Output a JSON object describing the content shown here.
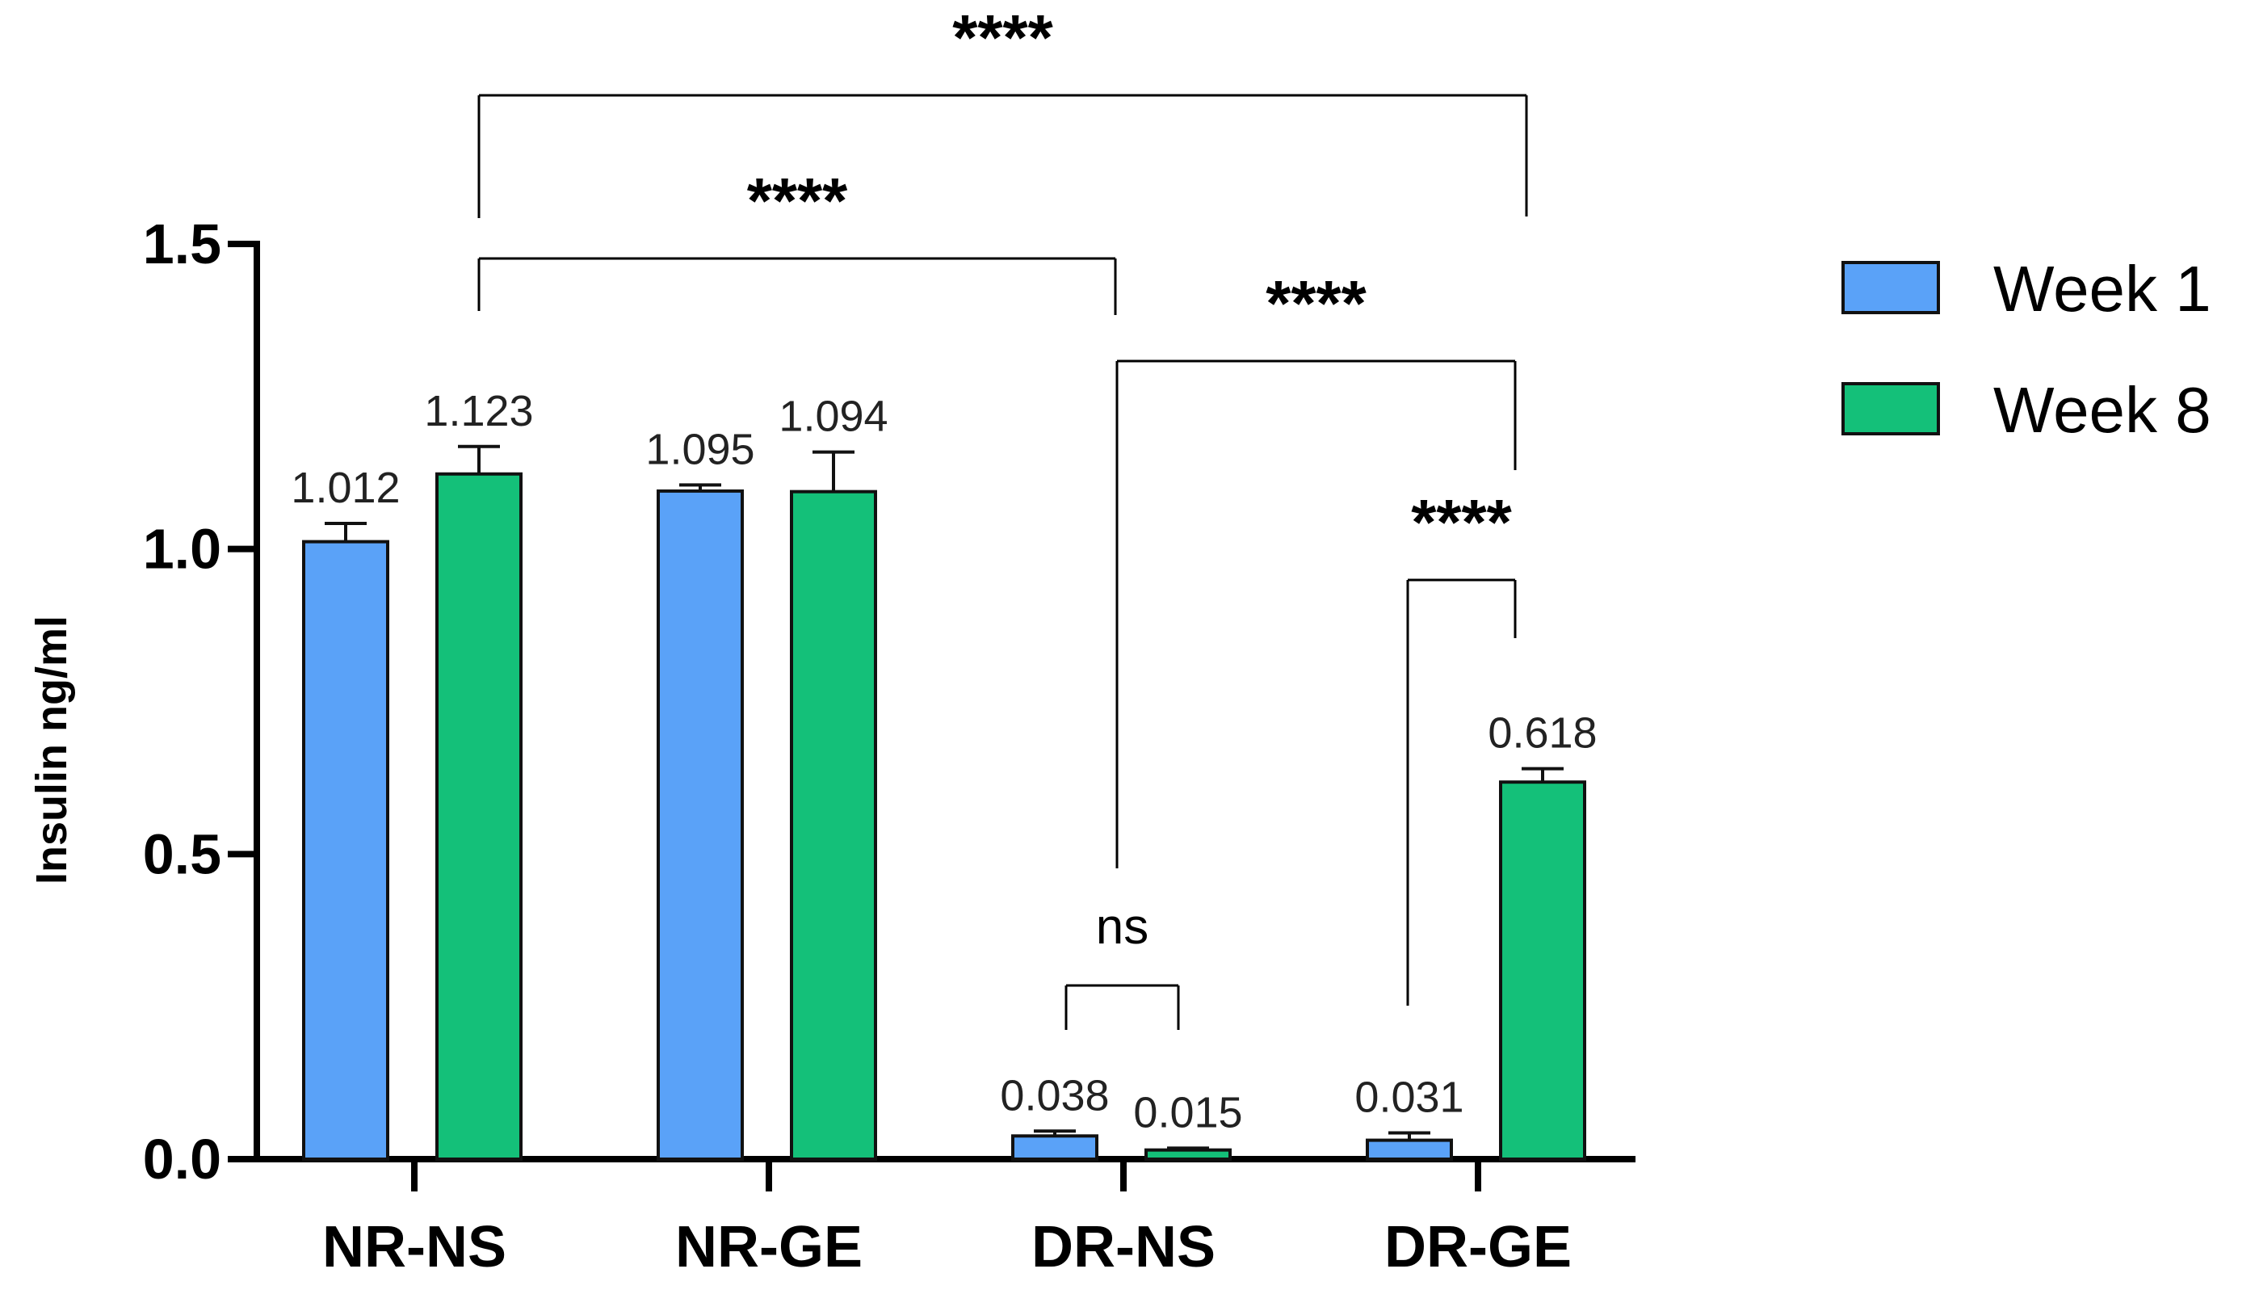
{
  "chart_data": {
    "type": "bar",
    "title": "",
    "xlabel": "",
    "ylabel": "Insulin ng/ml",
    "ylim": [
      0,
      1.5
    ],
    "yticks": [
      "0.0",
      "0.5",
      "1.0",
      "1.5"
    ],
    "categories": [
      "NR-NS",
      "NR-GE",
      "DR-NS",
      "DR-GE"
    ],
    "series": [
      {
        "name": "Week 1",
        "color": "#5aa2f8",
        "values": [
          1.012,
          1.095,
          0.038,
          0.031
        ],
        "labels": [
          "1.012",
          "1.095",
          "0.038",
          "0.031"
        ],
        "errors": [
          0.03,
          0.01,
          0.008,
          0.012
        ]
      },
      {
        "name": "Week 8",
        "color": "#14c079",
        "values": [
          1.123,
          1.094,
          0.015,
          0.618
        ],
        "labels": [
          "1.123",
          "1.094",
          "0.015",
          "0.618"
        ],
        "errors": [
          0.045,
          0.065,
          0.003,
          0.022
        ]
      }
    ],
    "significance": [
      {
        "from": "NR-NS Week 8",
        "to": "DR-GE Week 8",
        "label": "****"
      },
      {
        "from": "NR-NS Week 8",
        "to": "DR-NS Week 8",
        "label": "****"
      },
      {
        "from": "DR-NS Week 8",
        "to": "DR-GE Week 8",
        "label": "****"
      },
      {
        "from": "DR-GE Week 1",
        "to": "DR-GE Week 8",
        "label": "****"
      },
      {
        "from": "DR-NS Week 1",
        "to": "DR-NS Week 8",
        "label": "ns"
      }
    ],
    "legend": {
      "position": "top-right",
      "entries": [
        "Week 1",
        "Week 8"
      ]
    }
  }
}
